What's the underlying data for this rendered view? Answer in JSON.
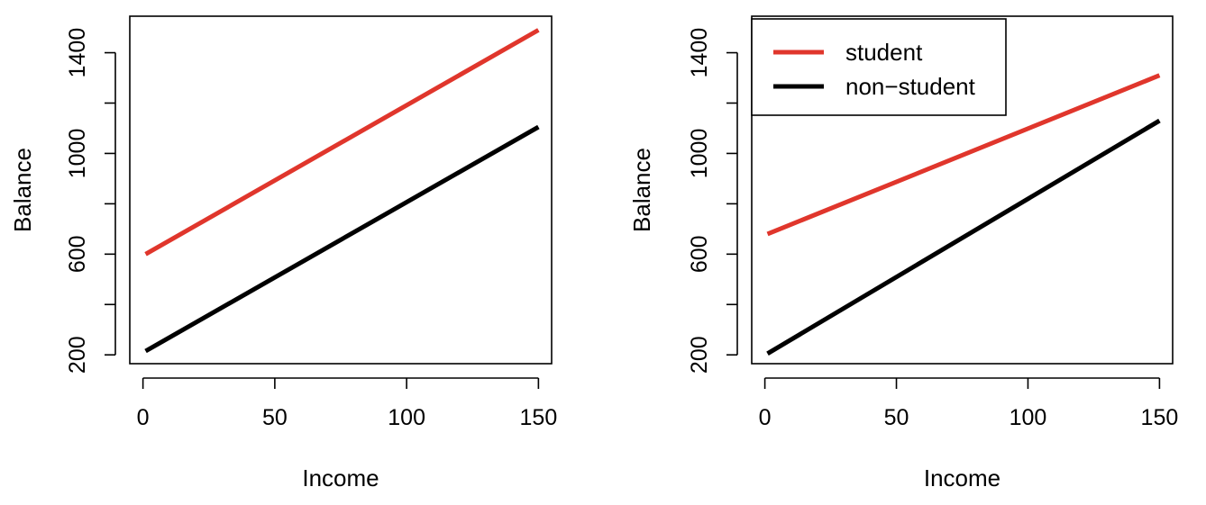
{
  "chart_data": [
    {
      "type": "line",
      "title": "",
      "xlabel": "Income",
      "ylabel": "Balance",
      "xlim": [
        -5,
        155
      ],
      "ylim": [
        165,
        1545
      ],
      "x_ticks": [
        0,
        50,
        100,
        150
      ],
      "x_tick_labels": [
        "0",
        "50",
        "100",
        "150"
      ],
      "y_ticks": [
        200,
        400,
        600,
        800,
        1000,
        1200,
        1400
      ],
      "y_tick_labels": [
        "200",
        "",
        "600",
        "",
        "1000",
        "",
        "1400"
      ],
      "grid": false,
      "series": [
        {
          "color": "#e0362c",
          "x": [
            1,
            150
          ],
          "y": [
            600,
            1490
          ]
        },
        {
          "color": "#000000",
          "x": [
            1,
            150
          ],
          "y": [
            215,
            1105
          ]
        }
      ]
    },
    {
      "type": "line",
      "title": "",
      "xlabel": "Income",
      "ylabel": "Balance",
      "xlim": [
        -5,
        155
      ],
      "ylim": [
        165,
        1545
      ],
      "x_ticks": [
        0,
        50,
        100,
        150
      ],
      "x_tick_labels": [
        "0",
        "50",
        "100",
        "150"
      ],
      "y_ticks": [
        200,
        400,
        600,
        800,
        1000,
        1200,
        1400
      ],
      "y_tick_labels": [
        "200",
        "",
        "600",
        "",
        "1000",
        "",
        "1400"
      ],
      "grid": false,
      "legend": "top-left",
      "series": [
        {
          "name": "student",
          "color": "#e0362c",
          "x": [
            1,
            150
          ],
          "y": [
            680,
            1310
          ]
        },
        {
          "name": "non−student",
          "color": "#000000",
          "x": [
            1,
            150
          ],
          "y": [
            205,
            1130
          ]
        }
      ]
    }
  ]
}
